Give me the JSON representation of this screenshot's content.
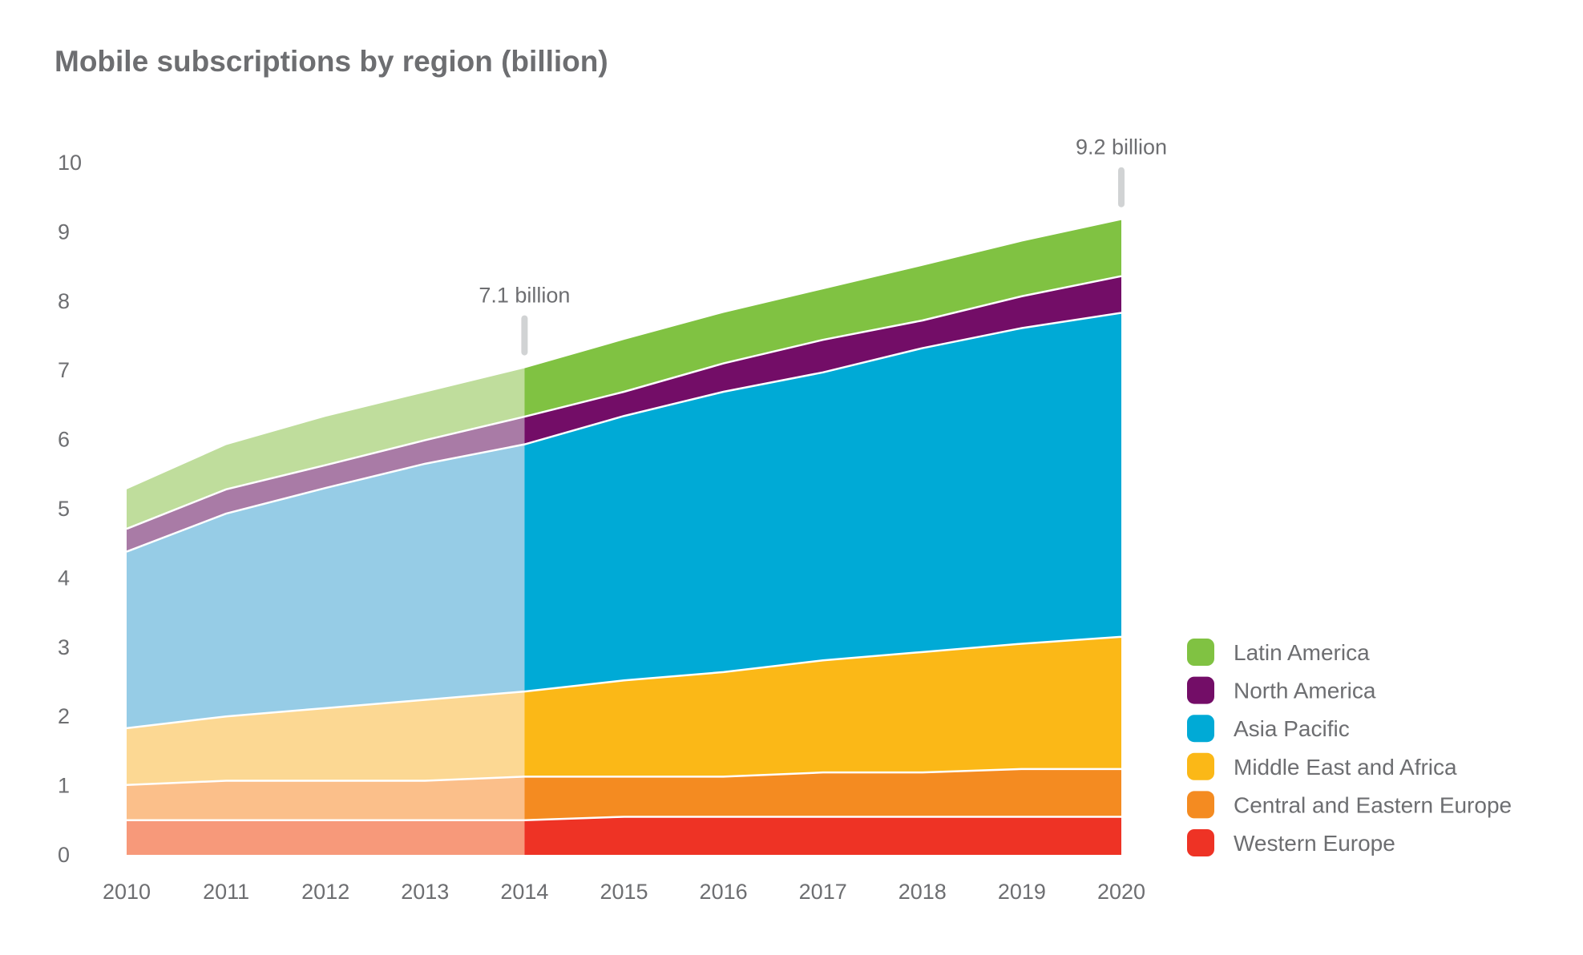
{
  "chart_data": {
    "type": "area",
    "stacked": true,
    "title": "Mobile subscriptions by region (billion)",
    "xlabel": "",
    "ylabel": "",
    "x": [
      2010,
      2011,
      2012,
      2013,
      2014,
      2015,
      2016,
      2017,
      2018,
      2019,
      2020
    ],
    "x_tick_labels": [
      "2010",
      "2011",
      "2012",
      "2013",
      "2014",
      "2015",
      "2016",
      "2017",
      "2018",
      "2019",
      "2020"
    ],
    "ylim": [
      0,
      10
    ],
    "y_tick_labels": [
      "0",
      "1",
      "2",
      "3",
      "4",
      "5",
      "6",
      "7",
      "8",
      "9",
      "10"
    ],
    "grid": false,
    "legend_position": "bottom-right",
    "historical_until": 2014,
    "series": [
      {
        "name": "Western Europe",
        "color": "#ee3325",
        "color_historical": "#f7997a",
        "values": [
          0.5,
          0.5,
          0.5,
          0.5,
          0.5,
          0.55,
          0.55,
          0.55,
          0.55,
          0.55,
          0.55
        ]
      },
      {
        "name": "Central and Eastern Europe",
        "color": "#f48b21",
        "color_historical": "#fbbf8a",
        "values": [
          0.51,
          0.57,
          0.57,
          0.57,
          0.63,
          0.58,
          0.58,
          0.64,
          0.64,
          0.69,
          0.69
        ]
      },
      {
        "name": "Middle East and Africa",
        "color": "#fbb817",
        "color_historical": "#fcd893",
        "values": [
          0.82,
          0.93,
          1.05,
          1.17,
          1.23,
          1.39,
          1.51,
          1.62,
          1.74,
          1.81,
          1.91
        ]
      },
      {
        "name": "Asia Pacific",
        "color": "#00aad6",
        "color_historical": "#96cce6",
        "values": [
          2.55,
          2.93,
          3.18,
          3.41,
          3.57,
          3.82,
          4.05,
          4.16,
          4.39,
          4.56,
          4.68
        ]
      },
      {
        "name": "North America",
        "color": "#730d67",
        "color_historical": "#a97ba6",
        "values": [
          0.33,
          0.35,
          0.33,
          0.34,
          0.4,
          0.35,
          0.41,
          0.47,
          0.4,
          0.46,
          0.53
        ]
      },
      {
        "name": "Latin America",
        "color": "#80c242",
        "color_historical": "#bfdd9c",
        "values": [
          0.57,
          0.64,
          0.7,
          0.69,
          0.7,
          0.75,
          0.73,
          0.73,
          0.79,
          0.79,
          0.81
        ]
      }
    ],
    "annotations": [
      {
        "x": 2014,
        "text": "7.1 billion"
      },
      {
        "x": 2020,
        "text": "9.2 billion"
      }
    ]
  }
}
